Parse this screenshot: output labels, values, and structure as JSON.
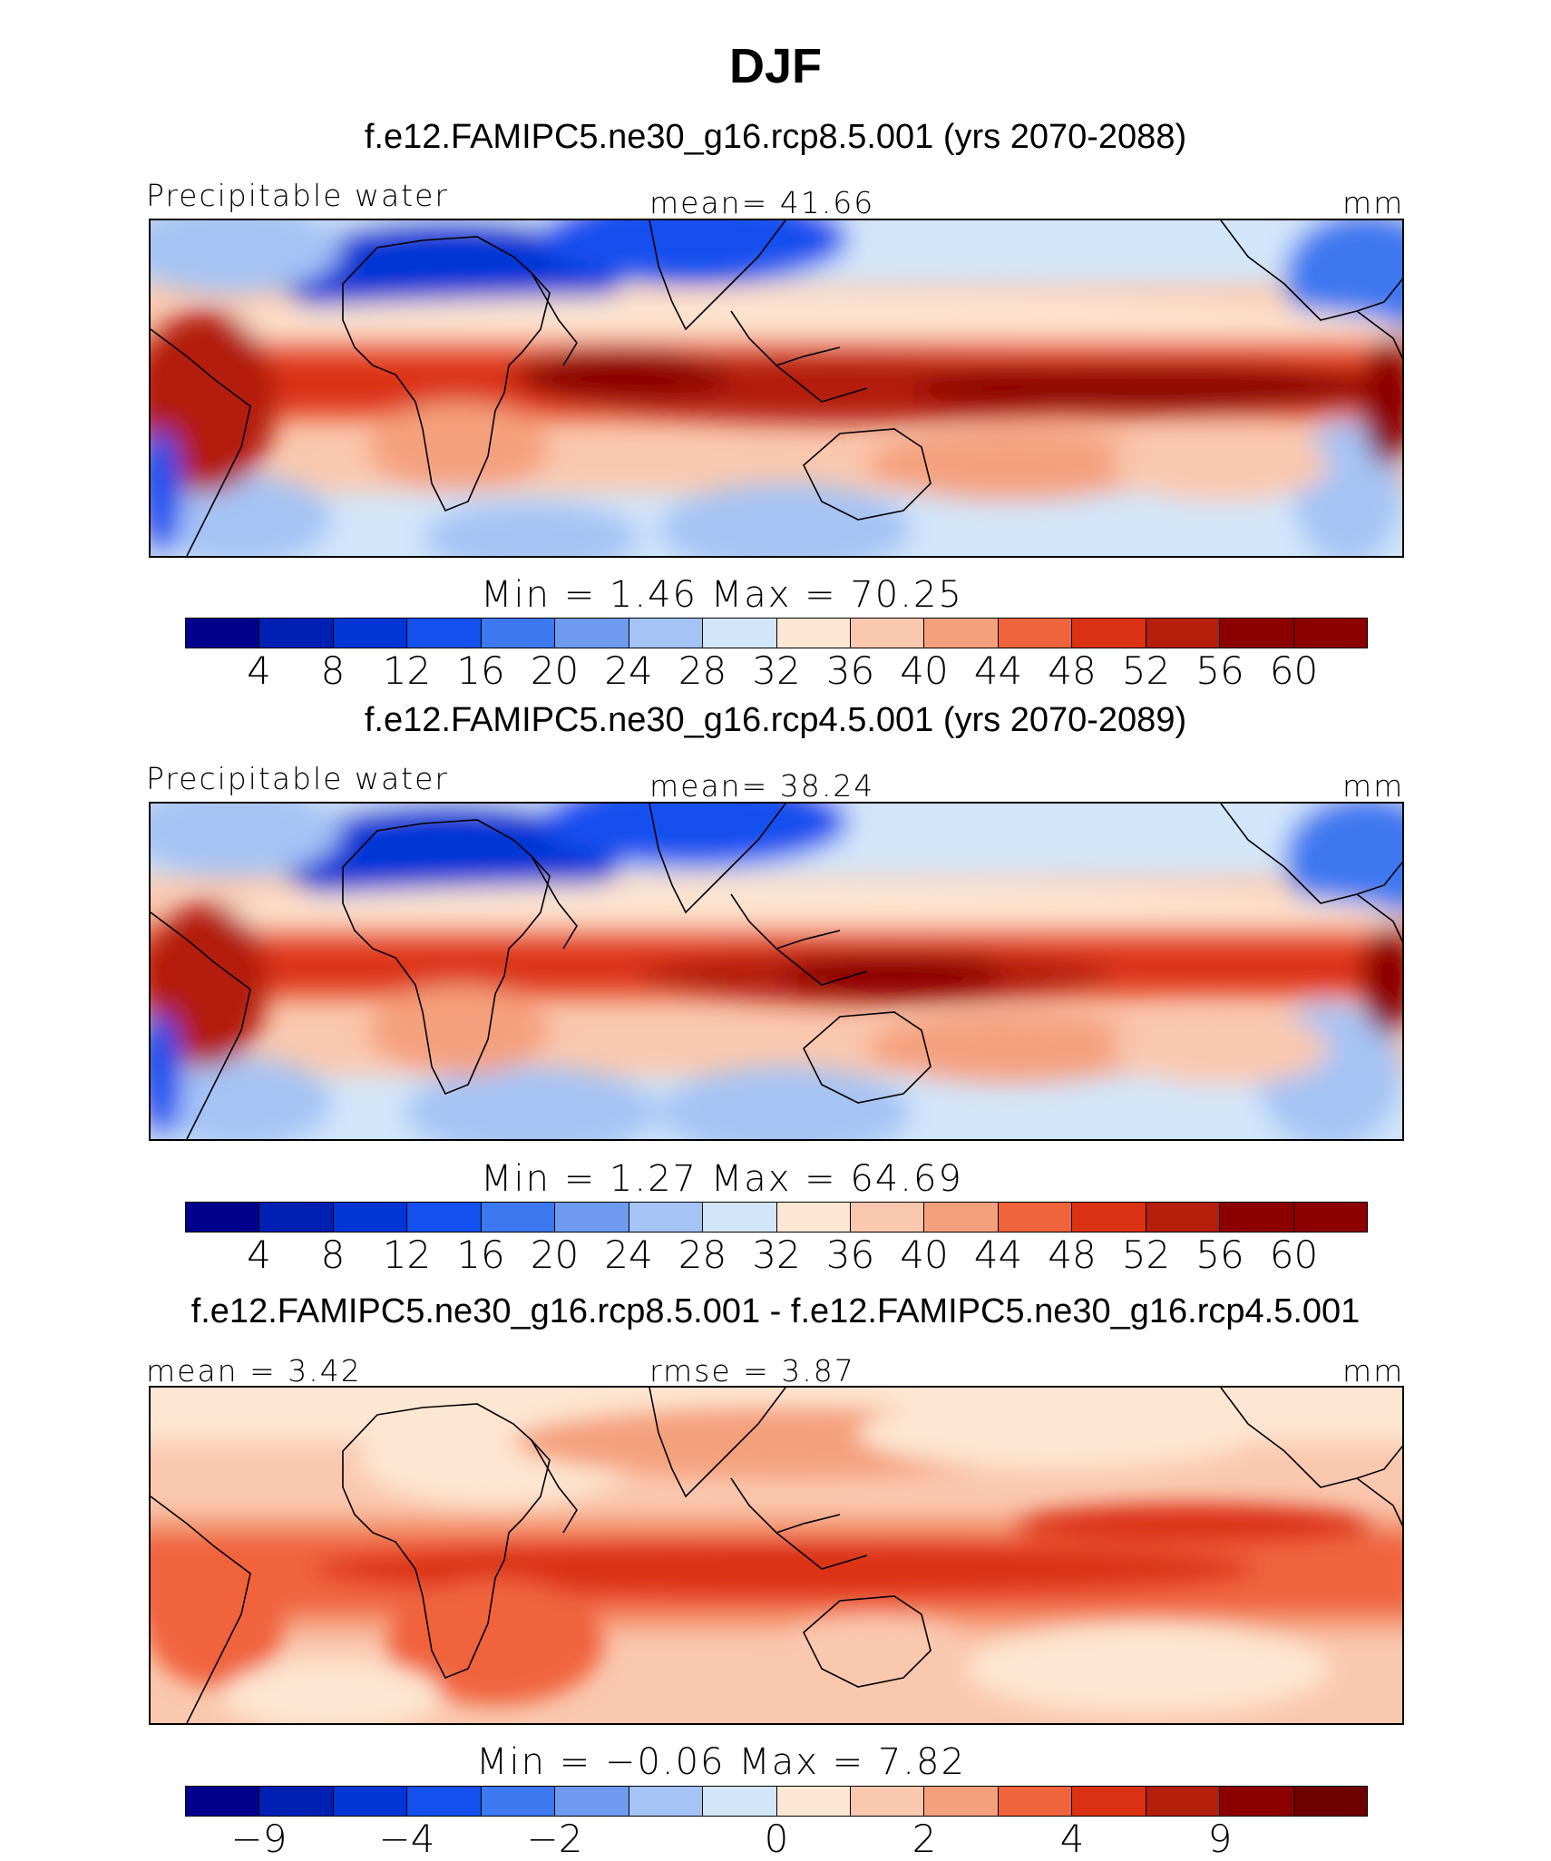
{
  "title": "DJF",
  "panels": [
    {
      "case": "f.e12.FAMIPC5.ne30_g16.rcp8.5.001 (yrs 2070-2088)",
      "left_label": "Precipitable water",
      "center_label": "mean=   41.66",
      "units": "mm",
      "minmax": "Min  =     1.46  Max  =    70.25",
      "ticks": [
        "4",
        "8",
        "12",
        "16",
        "20",
        "24",
        "28",
        "32",
        "36",
        "40",
        "44",
        "48",
        "52",
        "56",
        "60"
      ]
    },
    {
      "case": "f.e12.FAMIPC5.ne30_g16.rcp4.5.001 (yrs 2070-2089)",
      "left_label": "Precipitable water",
      "center_label": "mean=   38.24",
      "units": "mm",
      "minmax": "Min  =     1.27  Max  =    64.69",
      "ticks": [
        "4",
        "8",
        "12",
        "16",
        "20",
        "24",
        "28",
        "32",
        "36",
        "40",
        "44",
        "48",
        "52",
        "56",
        "60"
      ]
    },
    {
      "case": "f.e12.FAMIPC5.ne30_g16.rcp8.5.001 - f.e12.FAMIPC5.ne30_g16.rcp4.5.001",
      "left_label": "mean  =     3.42",
      "center_label": "rmse  =     3.87",
      "units": "mm",
      "minmax": "Min  =   −0.06  Max  =     7.82",
      "ticks": [
        "−9",
        "−4",
        "−2",
        "0",
        "2",
        "4",
        "9"
      ]
    }
  ],
  "colors": {
    "abs_scale": [
      "#00008c",
      "#0020b4",
      "#0036d6",
      "#1450f0",
      "#3c78f0",
      "#6e9bf0",
      "#a5c3f5",
      "#d2e6fa",
      "#fde6d2",
      "#fac8af",
      "#f5a07d",
      "#f0643c",
      "#dc3214",
      "#b41e0a",
      "#8c0000"
    ],
    "diff_scale": [
      "#00008c",
      "#0020b4",
      "#0036d6",
      "#1450f0",
      "#3c78f0",
      "#6e9bf0",
      "#a5c3f5",
      "#d2e6fa",
      "#fde6d2",
      "#fac8af",
      "#f5a07d",
      "#f0643c",
      "#dc3214",
      "#b41e0a",
      "#8c0000",
      "#6e0000"
    ]
  },
  "chart_data": [
    {
      "type": "heatmap",
      "title": "f.e12.FAMIPC5.ne30_g16.rcp8.5.001 (yrs 2070-2088)",
      "variable": "Precipitable water",
      "units": "mm",
      "mean": 41.66,
      "min": 1.46,
      "max": 70.25,
      "contour_levels": [
        4,
        8,
        12,
        16,
        20,
        24,
        28,
        32,
        36,
        40,
        44,
        48,
        52,
        56,
        60
      ]
    },
    {
      "type": "heatmap",
      "title": "f.e12.FAMIPC5.ne30_g16.rcp4.5.001 (yrs 2070-2089)",
      "variable": "Precipitable water",
      "units": "mm",
      "mean": 38.24,
      "min": 1.27,
      "max": 64.69,
      "contour_levels": [
        4,
        8,
        12,
        16,
        20,
        24,
        28,
        32,
        36,
        40,
        44,
        48,
        52,
        56,
        60
      ]
    },
    {
      "type": "heatmap",
      "title": "f.e12.FAMIPC5.ne30_g16.rcp8.5.001 - f.e12.FAMIPC5.ne30_g16.rcp4.5.001",
      "units": "mm",
      "mean": 3.42,
      "rmse": 3.87,
      "min": -0.06,
      "max": 7.82,
      "tick_labels": [
        -9,
        -4,
        -2,
        0,
        2,
        4,
        9
      ]
    }
  ]
}
